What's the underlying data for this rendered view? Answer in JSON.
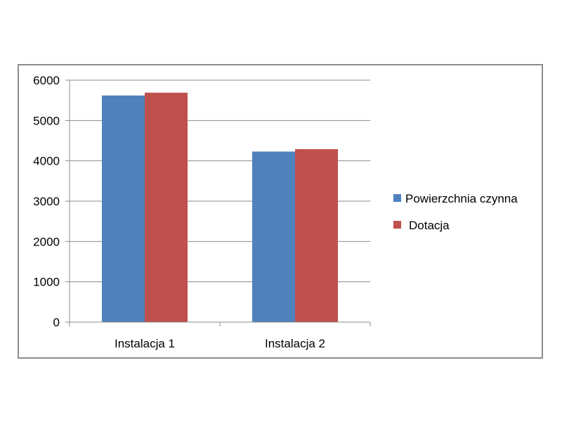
{
  "chart_data": {
    "type": "bar",
    "title": "",
    "xlabel": "",
    "ylabel": "",
    "categories": [
      "Instalacja 1",
      "Instalacja 2"
    ],
    "series": [
      {
        "name": "Powierzchnia czynna",
        "values": [
          5620,
          4230
        ],
        "color": "#4f81bd"
      },
      {
        "name": "Dotacja",
        "values": [
          5690,
          4290
        ],
        "color": "#c0504d"
      }
    ],
    "ylim": [
      0,
      6000
    ],
    "yticks": [
      "0",
      "1000",
      "2000",
      "3000",
      "4000",
      "5000",
      "6000"
    ],
    "grid": true,
    "legend_position": "right"
  }
}
